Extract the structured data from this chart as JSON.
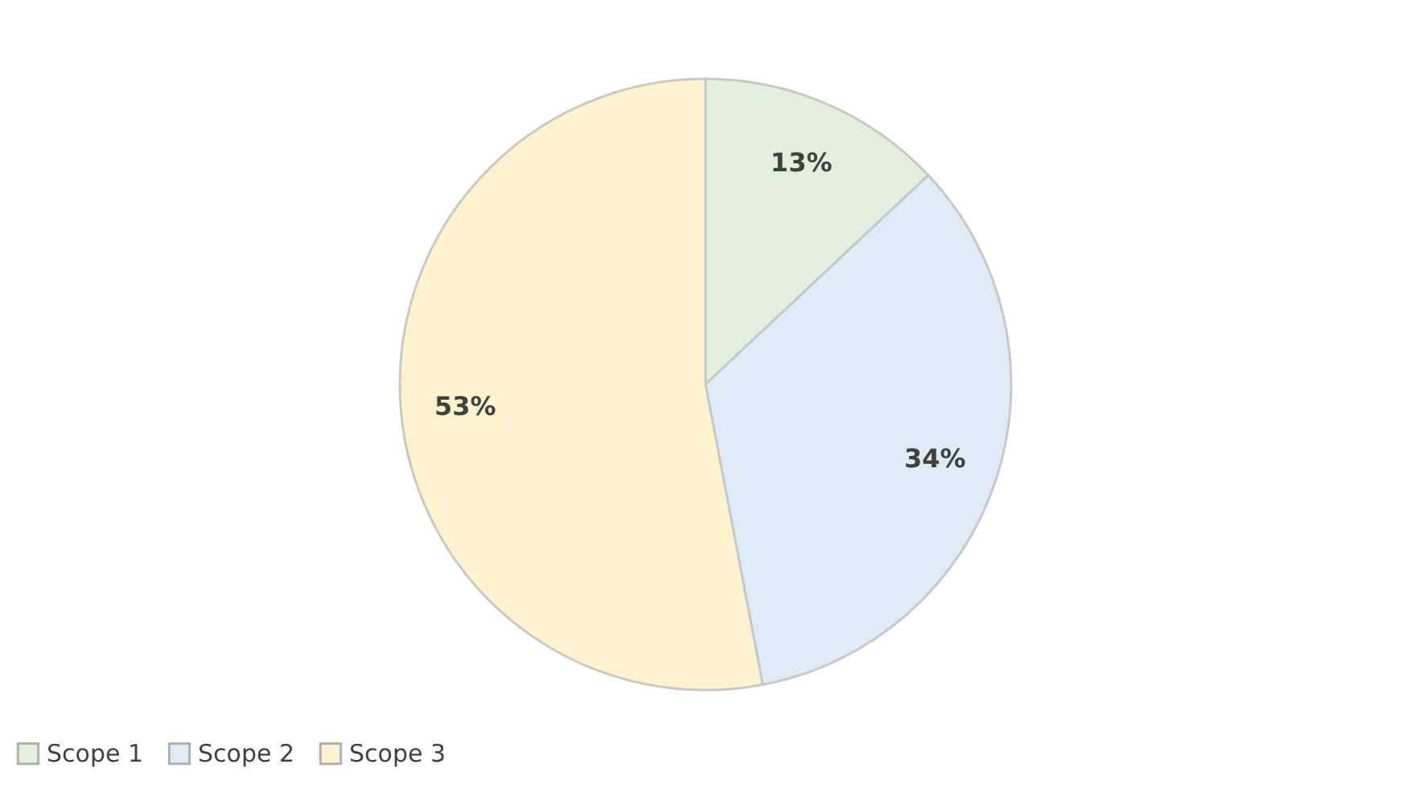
{
  "chart_data": {
    "type": "pie",
    "categories": [
      "Scope 1",
      "Scope 2",
      "Scope 3"
    ],
    "values": [
      13,
      34,
      53
    ],
    "colors": [
      "#e2efda",
      "#ddebf7",
      "#fff2cc"
    ],
    "value_labels": [
      "13%",
      "34%",
      "53%"
    ],
    "legend": "bottom"
  }
}
